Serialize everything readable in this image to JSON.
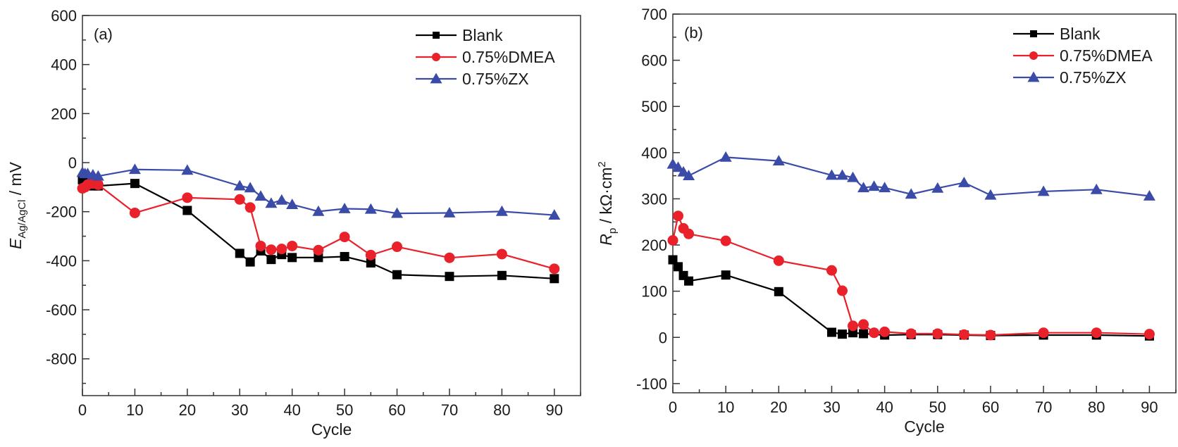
{
  "chart_data": [
    {
      "type": "line",
      "panel_label": "(a)",
      "xlabel": "Cycle",
      "ylabel_main": "E",
      "ylabel_sub": "Ag/AgCl",
      "ylabel_unit": " / mV",
      "xlim": [
        0,
        95
      ],
      "ylim": [
        -950,
        600
      ],
      "xticks": [
        0,
        10,
        20,
        30,
        40,
        50,
        60,
        70,
        80,
        90
      ],
      "yticks": [
        -800,
        -600,
        -400,
        -200,
        0,
        200,
        400,
        600
      ],
      "legend_position": "top-right",
      "grid": false,
      "series": [
        {
          "name": "Blank",
          "color": "#000000",
          "marker": "square",
          "x": [
            0,
            0.5,
            1,
            2,
            3,
            10,
            20,
            30,
            32,
            34,
            36,
            38,
            40,
            45,
            50,
            55,
            60,
            70,
            80,
            90
          ],
          "y": [
            -70,
            -80,
            -90,
            -95,
            -95,
            -85,
            -195,
            -370,
            -405,
            -360,
            -395,
            -375,
            -387,
            -387,
            -383,
            -409,
            -457,
            -464,
            -460,
            -473
          ]
        },
        {
          "name": "0.75%DMEA",
          "color": "#e8212a",
          "marker": "circle",
          "x": [
            0,
            0.5,
            1,
            2,
            3,
            10,
            20,
            30,
            32,
            34,
            36,
            38,
            40,
            45,
            50,
            55,
            60,
            70,
            80,
            90
          ],
          "y": [
            -105,
            -100,
            -90,
            -85,
            -90,
            -205,
            -143,
            -150,
            -183,
            -340,
            -355,
            -352,
            -340,
            -357,
            -303,
            -377,
            -343,
            -388,
            -373,
            -433
          ]
        },
        {
          "name": "0.75%ZX",
          "color": "#3b4ba8",
          "marker": "triangle",
          "x": [
            0,
            0.5,
            1,
            2,
            3,
            10,
            20,
            30,
            32,
            34,
            36,
            38,
            40,
            45,
            50,
            55,
            60,
            70,
            80,
            90
          ],
          "y": [
            -40,
            -45,
            -45,
            -50,
            -55,
            -28,
            -31,
            -95,
            -103,
            -137,
            -166,
            -153,
            -171,
            -199,
            -188,
            -190,
            -207,
            -205,
            -199,
            -214
          ]
        }
      ]
    },
    {
      "type": "line",
      "panel_label": "(b)",
      "xlabel": "Cycle",
      "ylabel_main": "R",
      "ylabel_sub": "p",
      "ylabel_unit": " / kΩ·cm",
      "ylabel_sup": "2",
      "xlim": [
        0,
        95
      ],
      "ylim": [
        -120,
        700
      ],
      "xticks": [
        0,
        10,
        20,
        30,
        40,
        50,
        60,
        70,
        80,
        90
      ],
      "yticks": [
        -100,
        0,
        100,
        200,
        300,
        400,
        500,
        600,
        700
      ],
      "legend_position": "top-right",
      "grid": false,
      "series": [
        {
          "name": "Blank",
          "color": "#000000",
          "marker": "square",
          "x": [
            0,
            1,
            2,
            3,
            10,
            20,
            30,
            32,
            34,
            36,
            40,
            45,
            50,
            55,
            60,
            70,
            80,
            90
          ],
          "y": [
            168,
            153,
            134,
            122,
            135,
            99,
            11,
            7,
            10,
            8,
            5,
            6,
            6,
            5,
            4,
            5,
            5,
            3
          ]
        },
        {
          "name": "0.75%DMEA",
          "color": "#e8212a",
          "marker": "circle",
          "x": [
            0,
            1,
            2,
            3,
            10,
            20,
            30,
            32,
            34,
            36,
            38,
            40,
            45,
            50,
            55,
            60,
            70,
            80,
            90
          ],
          "y": [
            210,
            263,
            236,
            224,
            209,
            166,
            145,
            101,
            25,
            28,
            10,
            12,
            8,
            8,
            6,
            5,
            10,
            10,
            7
          ]
        },
        {
          "name": "0.75%ZX",
          "color": "#3b4ba8",
          "marker": "triangle",
          "x": [
            0,
            1,
            2,
            3,
            10,
            20,
            30,
            32,
            34,
            36,
            38,
            40,
            45,
            50,
            55,
            60,
            70,
            80,
            90
          ],
          "y": [
            375,
            368,
            358,
            350,
            390,
            382,
            351,
            351,
            346,
            324,
            327,
            324,
            310,
            323,
            335,
            308,
            316,
            320,
            306
          ]
        }
      ]
    }
  ]
}
